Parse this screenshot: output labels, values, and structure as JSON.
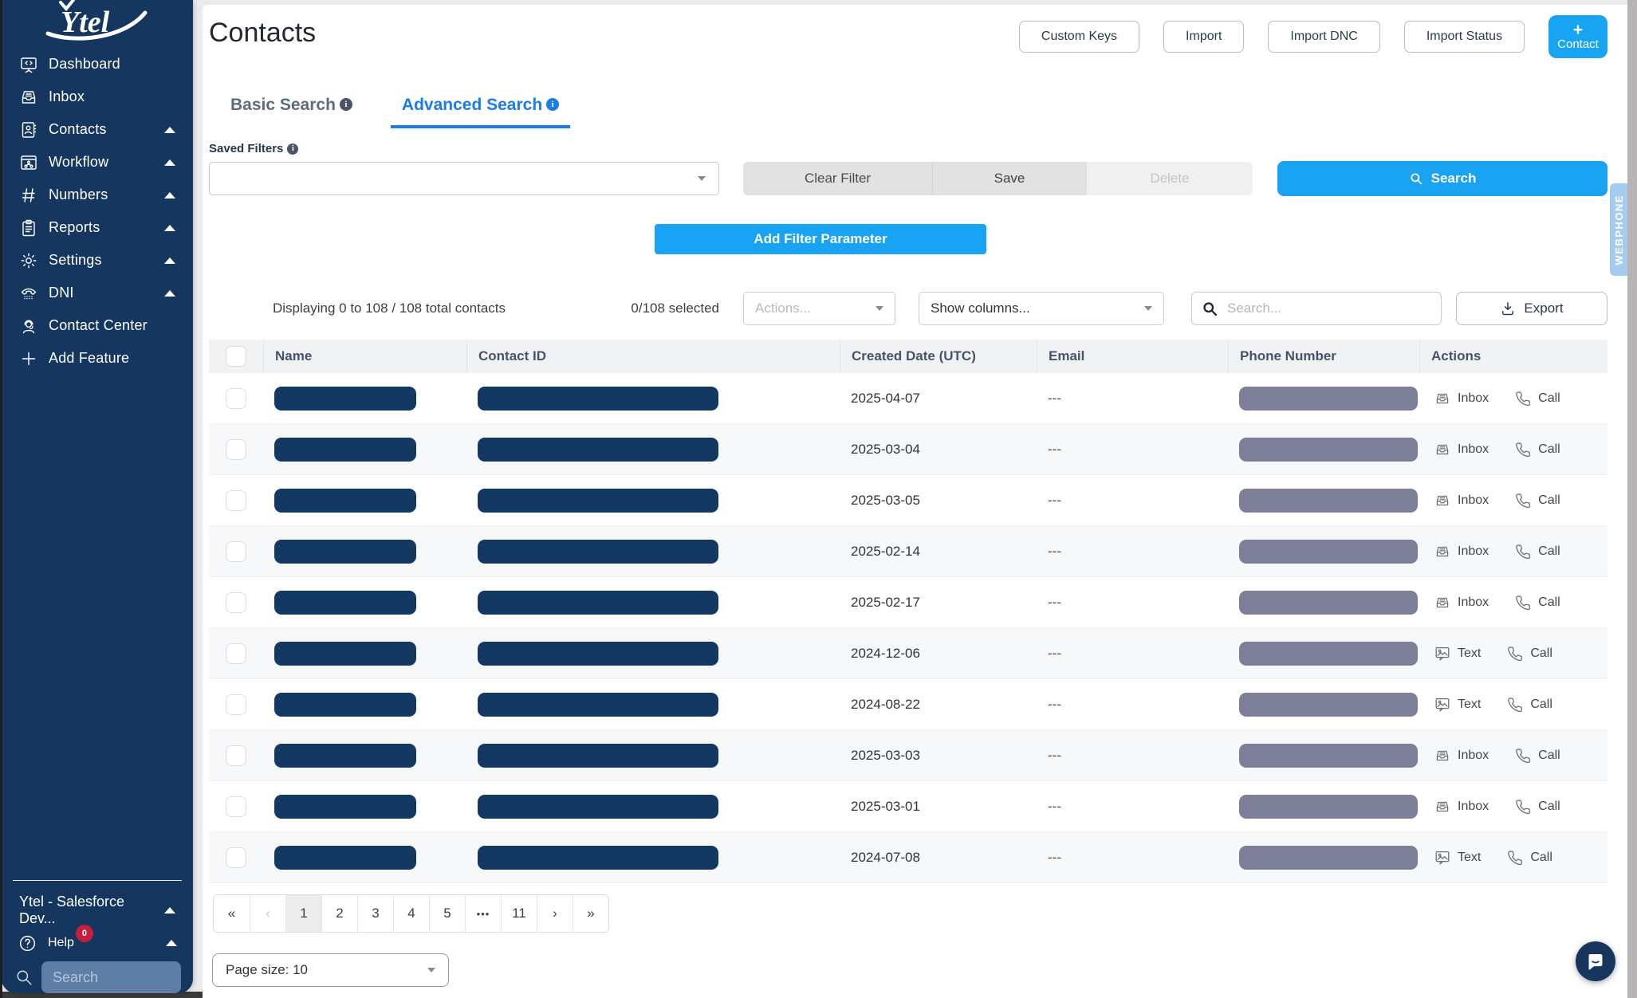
{
  "app": {
    "accent_color": "#18a3f3",
    "sidebar_color": "#15365f",
    "tab_active_color": "#1a7ce6",
    "redaction_navy": "#133862",
    "redaction_gray": "#7d7f99"
  },
  "sidebar": {
    "logo": "Ytel",
    "items": [
      {
        "label": "Dashboard",
        "icon": "dashboard-icon",
        "caret": false
      },
      {
        "label": "Inbox",
        "icon": "inbox-icon",
        "caret": false
      },
      {
        "label": "Contacts",
        "icon": "contacts-icon",
        "caret": true
      },
      {
        "label": "Workflow",
        "icon": "workflow-icon",
        "caret": true
      },
      {
        "label": "Numbers",
        "icon": "numbers-icon",
        "caret": true
      },
      {
        "label": "Reports",
        "icon": "reports-icon",
        "caret": true
      },
      {
        "label": "Settings",
        "icon": "settings-icon",
        "caret": true
      },
      {
        "label": "DNI",
        "icon": "dni-icon",
        "caret": true
      },
      {
        "label": "Contact Center",
        "icon": "contact-center-icon",
        "caret": false
      },
      {
        "label": "Add Feature",
        "icon": "add-feature-icon",
        "caret": false
      }
    ],
    "org": {
      "label": "Ytel - Salesforce Dev..."
    },
    "help": {
      "label": "Help",
      "badge": "0"
    },
    "search_placeholder": "Search"
  },
  "header": {
    "title": "Contacts",
    "buttons": [
      "Custom Keys",
      "Import",
      "Import DNC",
      "Import Status"
    ],
    "contact_button": {
      "plus": "+",
      "label": "Contact"
    }
  },
  "tabs": {
    "basic": "Basic Search",
    "advanced": "Advanced Search"
  },
  "filters": {
    "saved_label": "Saved Filters",
    "clear": "Clear Filter",
    "save": "Save",
    "delete": "Delete",
    "search": "Search",
    "add_parameter": "Add Filter Parameter"
  },
  "toolbar": {
    "displaying": "Displaying 0 to 108 / 108 total contacts",
    "selected": "0/108 selected",
    "actions_placeholder": "Actions...",
    "show_columns": "Show columns...",
    "search_placeholder": "Search...",
    "export": "Export"
  },
  "table": {
    "columns": [
      "Name",
      "Contact ID",
      "Created Date (UTC)",
      "Email",
      "Phone Number",
      "Actions"
    ],
    "rows": [
      {
        "created": "2025-04-07",
        "email": "---",
        "message_action": "Inbox",
        "call_action": "Call"
      },
      {
        "created": "2025-03-04",
        "email": "---",
        "message_action": "Inbox",
        "call_action": "Call"
      },
      {
        "created": "2025-03-05",
        "email": "---",
        "message_action": "Inbox",
        "call_action": "Call"
      },
      {
        "created": "2025-02-14",
        "email": "---",
        "message_action": "Inbox",
        "call_action": "Call"
      },
      {
        "created": "2025-02-17",
        "email": "---",
        "message_action": "Inbox",
        "call_action": "Call"
      },
      {
        "created": "2024-12-06",
        "email": "---",
        "message_action": "Text",
        "call_action": "Call"
      },
      {
        "created": "2024-08-22",
        "email": "---",
        "message_action": "Text",
        "call_action": "Call"
      },
      {
        "created": "2025-03-03",
        "email": "---",
        "message_action": "Inbox",
        "call_action": "Call"
      },
      {
        "created": "2025-03-01",
        "email": "---",
        "message_action": "Inbox",
        "call_action": "Call"
      },
      {
        "created": "2024-07-08",
        "email": "---",
        "message_action": "Text",
        "call_action": "Call"
      }
    ]
  },
  "pagination": {
    "items": [
      {
        "label": "«"
      },
      {
        "label": "‹",
        "disabled": true
      },
      {
        "label": "1",
        "active": true
      },
      {
        "label": "2"
      },
      {
        "label": "3"
      },
      {
        "label": "4"
      },
      {
        "label": "5"
      },
      {
        "label": "•••",
        "dots": true
      },
      {
        "label": "11"
      },
      {
        "label": "›"
      },
      {
        "label": "»"
      }
    ]
  },
  "page_size": "Page size: 10",
  "webphone": "WEBPHONE"
}
